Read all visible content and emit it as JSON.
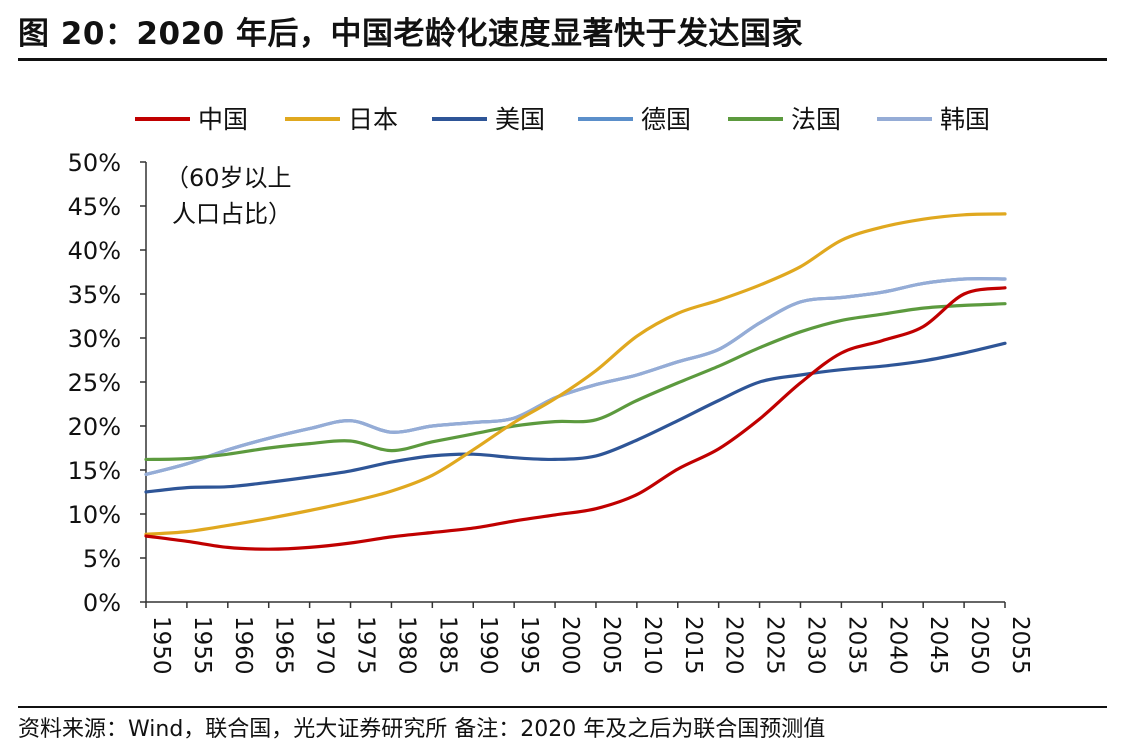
{
  "header": {
    "title": "图 20：2020 年后，中国老龄化速度显著快于发达国家"
  },
  "footer": {
    "source": "资料来源：Wind，联合国，光大证券研究所   备注：2020 年及之后为联合国预测值"
  },
  "chart_data": {
    "type": "line",
    "title": "图 20：2020 年后，中国老龄化速度显著快于发达国家",
    "ylabel": "（60岁以上人口占比）",
    "ylabel_lines": [
      "（60岁以上",
      "人口占比）"
    ],
    "xlabel": "",
    "ylim": [
      0,
      50
    ],
    "xlim": [
      1950,
      2055
    ],
    "y_ticks": [
      "0%",
      "5%",
      "10%",
      "15%",
      "20%",
      "25%",
      "30%",
      "35%",
      "40%",
      "45%",
      "50%"
    ],
    "x_ticks": [
      "1950",
      "1955",
      "1960",
      "1965",
      "1970",
      "1975",
      "1980",
      "1985",
      "1990",
      "1995",
      "2000",
      "2005",
      "2010",
      "2015",
      "2020",
      "2025",
      "2030",
      "2035",
      "2040",
      "2045",
      "2050",
      "2055"
    ],
    "grid": false,
    "legend_position": "top",
    "x": [
      1950,
      1955,
      1960,
      1965,
      1970,
      1975,
      1980,
      1985,
      1990,
      1995,
      2000,
      2005,
      2010,
      2015,
      2020,
      2025,
      2030,
      2035,
      2040,
      2045,
      2050,
      2055
    ],
    "series": [
      {
        "name": "中国",
        "color": "#c00000",
        "values": [
          7.5,
          6.9,
          6.2,
          6.0,
          6.2,
          6.7,
          7.4,
          7.9,
          8.4,
          9.2,
          9.9,
          10.6,
          12.2,
          15.1,
          17.4,
          20.8,
          24.9,
          28.3,
          29.7,
          31.3,
          35.0,
          35.7
        ]
      },
      {
        "name": "日本",
        "color": "#e0a81f",
        "values": [
          7.7,
          8.0,
          8.7,
          9.5,
          10.4,
          11.4,
          12.6,
          14.4,
          17.3,
          20.4,
          23.1,
          26.3,
          30.2,
          32.8,
          34.3,
          36.0,
          38.1,
          41.1,
          42.6,
          43.5,
          44.0,
          44.1
        ]
      },
      {
        "name": "美国",
        "color": "#2e5597",
        "values": [
          12.5,
          13.0,
          13.1,
          13.6,
          14.2,
          14.9,
          15.9,
          16.6,
          16.8,
          16.4,
          16.2,
          16.6,
          18.4,
          20.6,
          22.9,
          25.0,
          25.8,
          26.4,
          26.8,
          27.4,
          28.3,
          29.4
        ]
      },
      {
        "name": "德国",
        "color": "#5b8fca",
        "values": [
          14.5,
          15.7,
          17.3,
          18.6,
          19.7,
          20.6,
          19.3,
          20.0,
          20.4,
          20.9,
          23.2,
          24.7,
          25.8,
          27.3,
          28.7,
          31.7,
          34.1,
          34.6,
          35.2,
          36.2,
          36.7,
          36.7
        ]
      },
      {
        "name": "法国",
        "color": "#5c9a3e",
        "values": [
          16.2,
          16.3,
          16.8,
          17.5,
          18.0,
          18.3,
          17.2,
          18.2,
          19.1,
          20.0,
          20.5,
          20.7,
          22.9,
          24.9,
          26.8,
          28.9,
          30.7,
          32.0,
          32.7,
          33.4,
          33.7,
          33.9
        ]
      },
      {
        "name": "韩国",
        "color": "#95acd6",
        "values": [
          14.5,
          15.7,
          17.3,
          18.6,
          19.7,
          20.6,
          19.3,
          20.0,
          20.4,
          20.9,
          23.2,
          24.7,
          25.8,
          27.3,
          28.7,
          31.7,
          34.1,
          34.6,
          35.2,
          36.2,
          36.7,
          36.7
        ]
      }
    ]
  }
}
